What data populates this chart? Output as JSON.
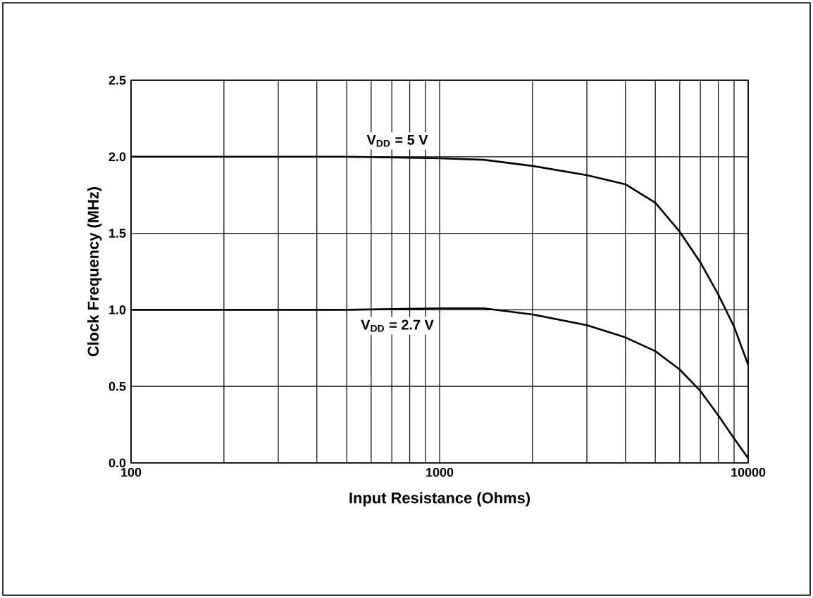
{
  "chart_data": {
    "type": "line",
    "xlabel": "Input Resistance (Ohms)",
    "ylabel": "Clock Frequency (MHz)",
    "log": "x",
    "xlim": [
      100,
      10000
    ],
    "xticks": [
      100,
      1000,
      10000
    ],
    "ylim": [
      0,
      2.5
    ],
    "yticks": [
      {
        "value": 0,
        "label": "0.0"
      },
      {
        "value": 0.5,
        "label": "0.5"
      },
      {
        "value": 1,
        "label": "1.0"
      },
      {
        "value": 1.5,
        "label": "1.5"
      },
      {
        "value": 2,
        "label": "2.0"
      },
      {
        "value": 2.5,
        "label": "2.5"
      }
    ],
    "grid": true,
    "legend": false,
    "marker": "none",
    "line_style": "solid",
    "series": [
      {
        "name": "V$_{DD}$ =  5 V",
        "color": "#000000",
        "x": [
          100,
          500,
          1000,
          1390,
          2000,
          3000,
          4000,
          5000,
          6000,
          7000,
          8000,
          9000,
          10000
        ],
        "values": [
          2.0,
          2.0,
          1.99,
          1.98,
          1.94,
          1.88,
          1.82,
          1.7,
          1.51,
          1.31,
          1.1,
          0.89,
          0.64
        ]
      },
      {
        "name": "V$_{DD}$ =  2.7 V",
        "color": "#000000",
        "x": [
          100,
          500,
          1000,
          1390,
          2000,
          3000,
          4000,
          5000,
          6000,
          7000,
          8000,
          9000,
          10000
        ],
        "values": [
          1.0,
          1.0,
          1.01,
          1.01,
          0.97,
          0.9,
          0.82,
          0.73,
          0.61,
          0.47,
          0.31,
          0.16,
          0.03
        ]
      }
    ]
  }
}
